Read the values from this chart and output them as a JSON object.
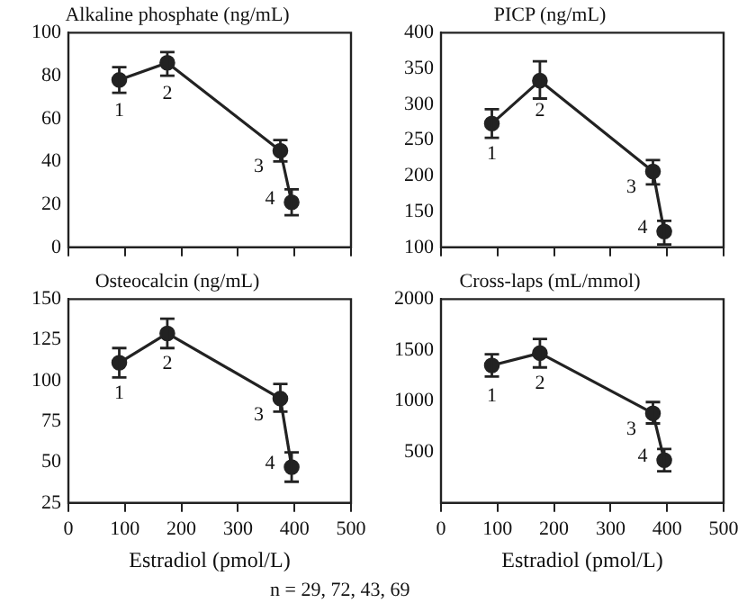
{
  "chart_data": [
    {
      "type": "line",
      "title": "Alkaline phosphate (ng/mL)",
      "x": [
        90,
        175,
        375,
        395
      ],
      "series": [
        {
          "color": "#222222",
          "values": [
            78,
            86,
            45,
            21
          ],
          "errors": [
            [
              72,
              84
            ],
            [
              80,
              91
            ],
            [
              40,
              50
            ],
            [
              15,
              27
            ]
          ]
        }
      ],
      "xlim": [
        0,
        500
      ],
      "xticks": [
        0,
        100,
        200,
        300,
        400,
        500
      ],
      "ylim": [
        0,
        100
      ],
      "yticks": [
        0,
        20,
        40,
        60,
        80,
        100
      ],
      "tick_labels": "y",
      "marker": "circle",
      "line_style": "solid",
      "legend": false,
      "annotations": [
        {
          "text": "1",
          "x": 90,
          "y": 78
        },
        {
          "text": "2",
          "x": 175,
          "y": 86
        },
        {
          "text": "3",
          "x": 375,
          "y": 45
        },
        {
          "text": "4",
          "x": 395,
          "y": 21
        }
      ]
    },
    {
      "type": "line",
      "title": "PICP (ng/mL)",
      "x": [
        90,
        175,
        375,
        395
      ],
      "series": [
        {
          "color": "#222222",
          "values": [
            273,
            333,
            206,
            122
          ],
          "errors": [
            [
              253,
              293
            ],
            [
              308,
              360
            ],
            [
              188,
              222
            ],
            [
              104,
              137
            ]
          ]
        }
      ],
      "xlim": [
        0,
        500
      ],
      "xticks": [
        0,
        100,
        200,
        300,
        400,
        500
      ],
      "ylim": [
        100,
        400
      ],
      "yticks": [
        100,
        150,
        200,
        250,
        300,
        350,
        400
      ],
      "tick_labels": "y",
      "marker": "circle",
      "line_style": "solid",
      "legend": false,
      "annotations": [
        {
          "text": "1",
          "x": 90,
          "y": 273
        },
        {
          "text": "2",
          "x": 175,
          "y": 333
        },
        {
          "text": "3",
          "x": 375,
          "y": 206
        },
        {
          "text": "4",
          "x": 395,
          "y": 122
        }
      ]
    },
    {
      "type": "line",
      "title": "Osteocalcin (ng/mL)",
      "xlabel": "Estradiol (pmol/L)",
      "x": [
        90,
        175,
        375,
        395
      ],
      "series": [
        {
          "color": "#222222",
          "values": [
            111,
            129,
            89,
            47
          ],
          "errors": [
            [
              102,
              120
            ],
            [
              120,
              138
            ],
            [
              81,
              98
            ],
            [
              38,
              56
            ]
          ]
        }
      ],
      "xlim": [
        0,
        500
      ],
      "xticks": [
        0,
        100,
        200,
        300,
        400,
        500
      ],
      "ylim": [
        25,
        150
      ],
      "yticks": [
        25,
        50,
        75,
        100,
        125,
        150
      ],
      "marker": "circle",
      "line_style": "solid",
      "legend": false,
      "annotations": [
        {
          "text": "1",
          "x": 90,
          "y": 111
        },
        {
          "text": "2",
          "x": 175,
          "y": 129
        },
        {
          "text": "3",
          "x": 375,
          "y": 89
        },
        {
          "text": "4",
          "x": 395,
          "y": 47
        },
        "n =  29, 72, 43, 69"
      ]
    },
    {
      "type": "line",
      "title": "Cross-laps (mL/mmol)",
      "xlabel": "Estradiol (pmol/L)",
      "x": [
        90,
        175,
        375,
        395
      ],
      "series": [
        {
          "color": "#222222",
          "values": [
            1350,
            1470,
            880,
            420
          ],
          "errors": [
            [
              1240,
              1460
            ],
            [
              1330,
              1610
            ],
            [
              780,
              990
            ],
            [
              310,
              530
            ]
          ]
        }
      ],
      "xlim": [
        0,
        500
      ],
      "xticks": [
        0,
        100,
        200,
        300,
        400,
        500
      ],
      "ylim": [
        0,
        2000
      ],
      "yticks": [
        {
          "value": 0,
          "label": null
        },
        500,
        1000,
        1500,
        2000
      ],
      "marker": "circle",
      "line_style": "solid",
      "legend": false,
      "annotations": [
        {
          "text": "1",
          "x": 90,
          "y": 1350
        },
        {
          "text": "2",
          "x": 175,
          "y": 1470
        },
        {
          "text": "3",
          "x": 375,
          "y": 880
        },
        {
          "text": "4",
          "x": 395,
          "y": 420
        }
      ]
    }
  ]
}
